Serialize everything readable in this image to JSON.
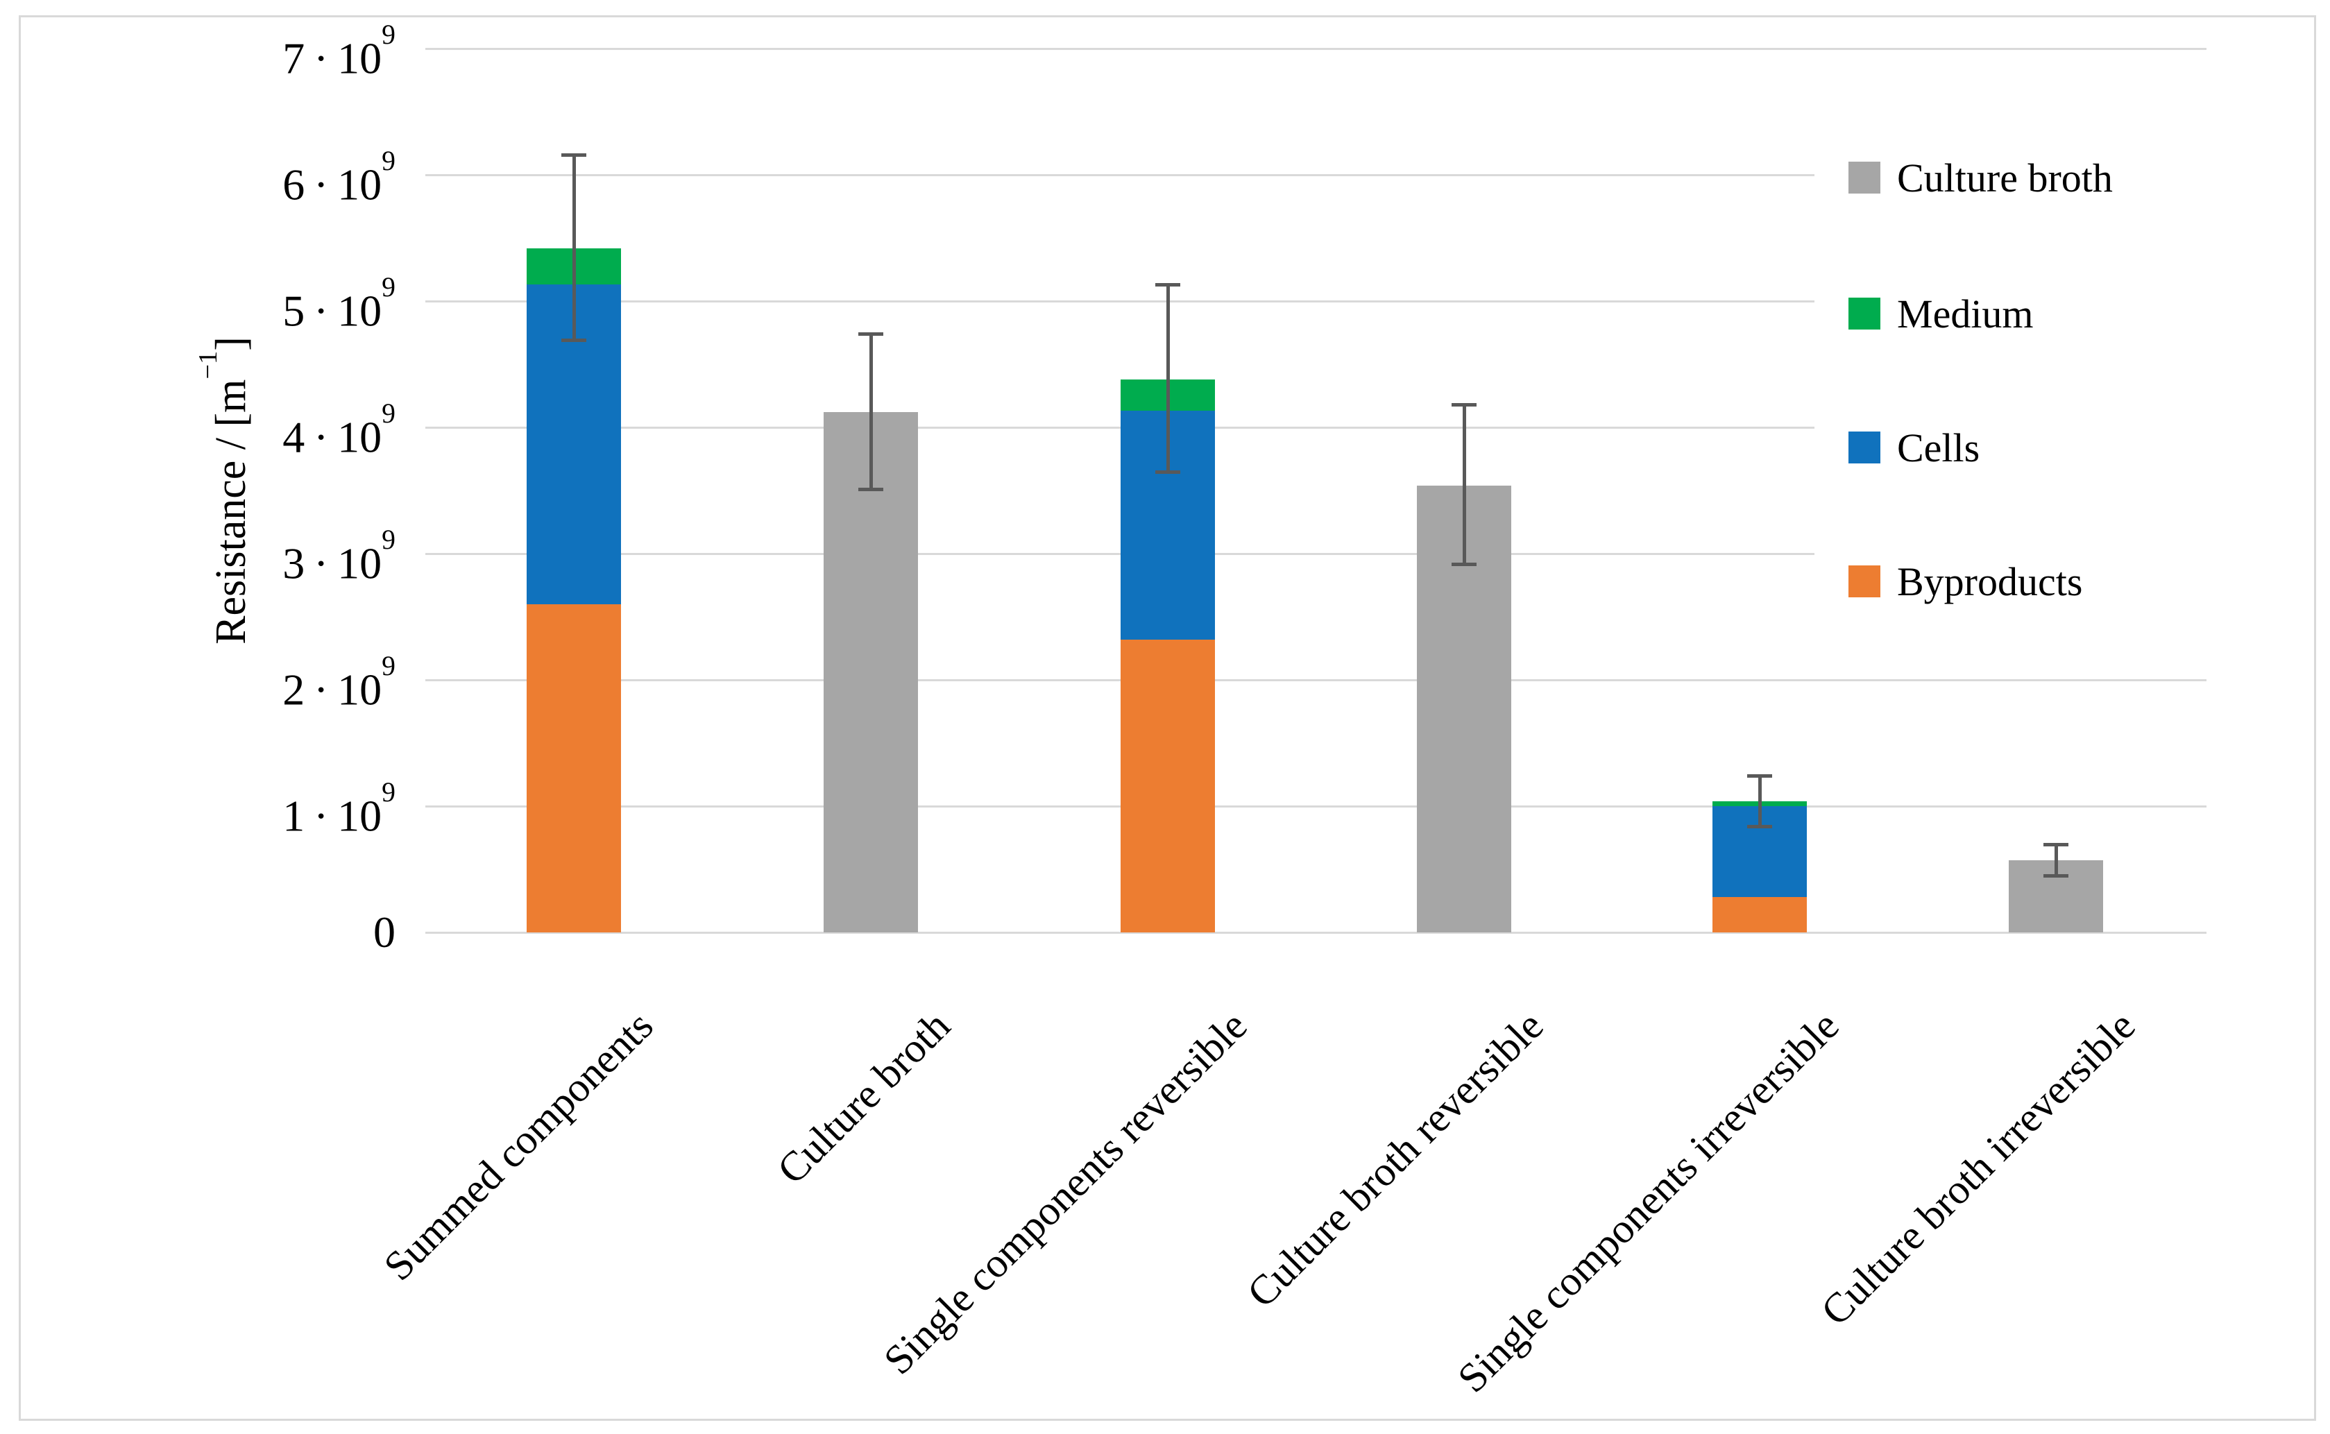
{
  "chart_data": {
    "type": "bar",
    "subtype": "stacked-with-error-bars",
    "title": "",
    "xlabel": "",
    "ylabel": "Resistance / [m⁻¹]",
    "ylabel_parts": {
      "pre": "Resistance / [m",
      "sup": "−1",
      "post": "]"
    },
    "value_scale": "·10⁹",
    "units": "m⁻¹",
    "ylim": [
      0,
      7
    ],
    "grid": "horizontal",
    "legend_position": "right-overlay",
    "categories": [
      "Summed components",
      "Culture broth",
      "Single components reversible",
      "Culture broth reversible",
      "Single components irreversible",
      "Culture broth irreversible"
    ],
    "series": [
      {
        "name": "Culture broth",
        "color": "#A6A6A6",
        "values": [
          0,
          4.12,
          0,
          3.54,
          0,
          0.57
        ]
      },
      {
        "name": "Medium",
        "color": "#00AC4E",
        "values": [
          0.29,
          0,
          0.25,
          0,
          0.04,
          0
        ]
      },
      {
        "name": "Cells",
        "color": "#1072BD",
        "values": [
          2.53,
          0,
          1.81,
          0,
          0.72,
          0
        ]
      },
      {
        "name": "Byproducts",
        "color": "#ED7D31",
        "values": [
          2.6,
          0,
          2.32,
          0,
          0.28,
          0
        ]
      }
    ],
    "bars": [
      {
        "category": "Summed components",
        "segments": [
          {
            "series": "Byproducts",
            "value": 2.6
          },
          {
            "series": "Cells",
            "value": 2.53
          },
          {
            "series": "Medium",
            "value": 0.29
          }
        ],
        "total": 5.42,
        "error_low": 4.69,
        "error_high": 6.16
      },
      {
        "category": "Culture broth",
        "segments": [
          {
            "series": "Culture broth",
            "value": 4.12
          }
        ],
        "total": 4.12,
        "error_low": 3.51,
        "error_high": 4.74
      },
      {
        "category": "Single components reversible",
        "segments": [
          {
            "series": "Byproducts",
            "value": 2.32
          },
          {
            "series": "Cells",
            "value": 1.81
          },
          {
            "series": "Medium",
            "value": 0.25
          }
        ],
        "total": 4.38,
        "error_low": 3.65,
        "error_high": 5.13
      },
      {
        "category": "Culture broth reversible",
        "segments": [
          {
            "series": "Culture broth",
            "value": 3.54
          }
        ],
        "total": 3.54,
        "error_low": 2.92,
        "error_high": 4.18
      },
      {
        "category": "Single components irreversible",
        "segments": [
          {
            "series": "Byproducts",
            "value": 0.28
          },
          {
            "series": "Cells",
            "value": 0.72
          },
          {
            "series": "Medium",
            "value": 0.04
          }
        ],
        "total": 1.04,
        "error_low": 0.84,
        "error_high": 1.24
      },
      {
        "category": "Culture broth irreversible",
        "segments": [
          {
            "series": "Culture broth",
            "value": 0.57
          }
        ],
        "total": 0.57,
        "error_low": 0.45,
        "error_high": 0.7
      }
    ],
    "y_axis": {
      "ticks": [
        {
          "value": 0,
          "base": "0",
          "sup": ""
        },
        {
          "value": 1,
          "base": "1 · 10",
          "sup": "9"
        },
        {
          "value": 2,
          "base": "2 · 10",
          "sup": "9"
        },
        {
          "value": 3,
          "base": "3 · 10",
          "sup": "9"
        },
        {
          "value": 4,
          "base": "4 · 10",
          "sup": "9"
        },
        {
          "value": 5,
          "base": "5 · 10",
          "sup": "9"
        },
        {
          "value": 6,
          "base": "6 · 10",
          "sup": "9"
        },
        {
          "value": 7,
          "base": "7 · 10",
          "sup": "9"
        }
      ]
    },
    "legend": [
      {
        "label": "Culture broth",
        "color": "#A6A6A6"
      },
      {
        "label": "Medium",
        "color": "#00AC4E"
      },
      {
        "label": "Cells",
        "color": "#1072BD"
      },
      {
        "label": "Byproducts",
        "color": "#ED7D31"
      }
    ],
    "colors": {
      "gridline": "#D9D9D9",
      "error_bar": "#595959",
      "figure_border": "#D9D9D9",
      "background": "#FFFFFF",
      "text": "#000000"
    }
  }
}
